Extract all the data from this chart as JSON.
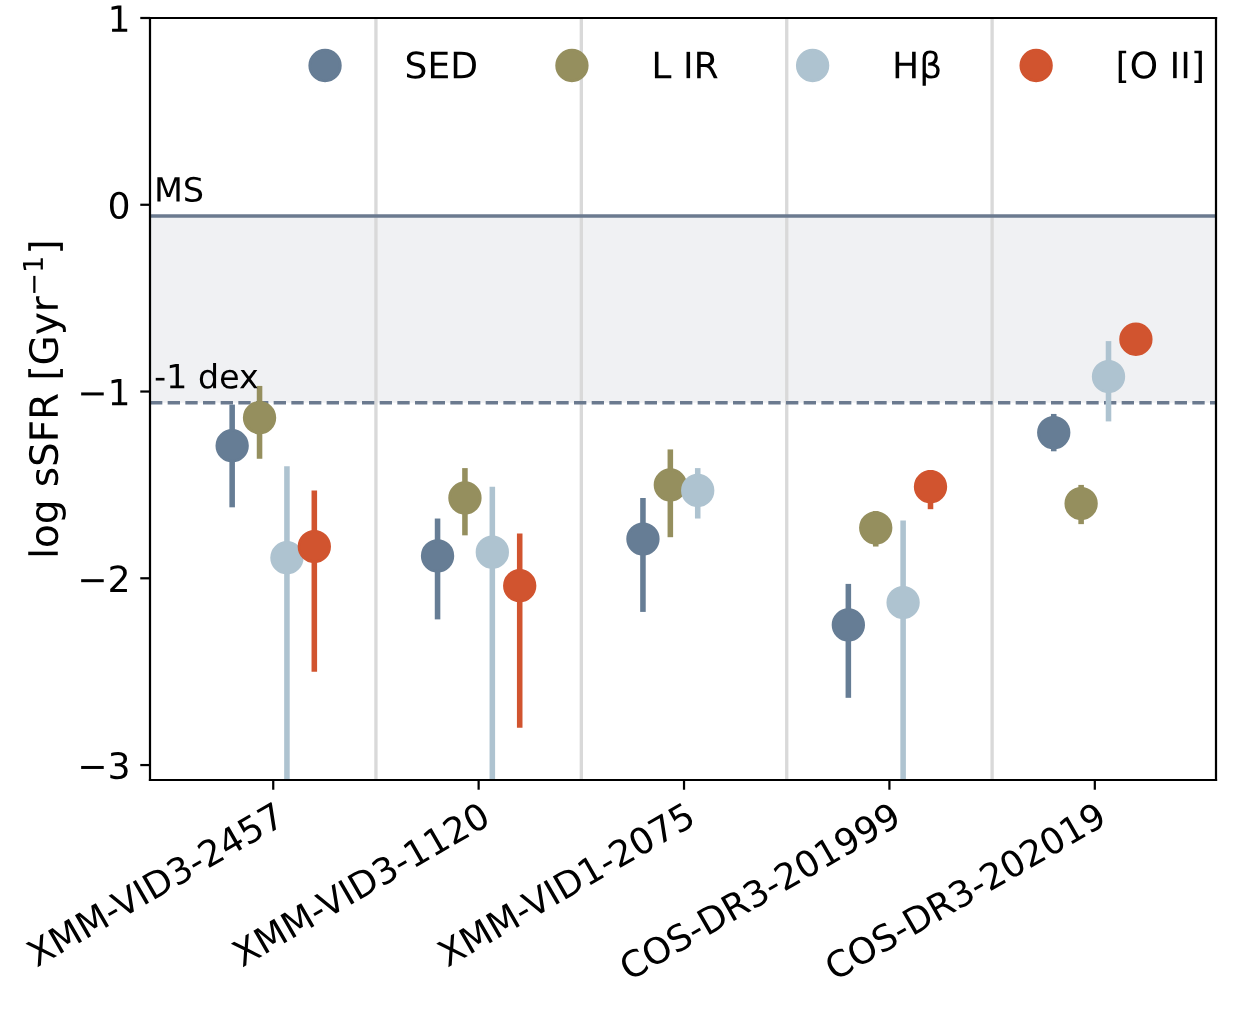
{
  "chart_data": {
    "type": "scatter",
    "ylabel": "log sSFR [Gyr$^{−1}$]",
    "categories": [
      "XMM-VID3-2457",
      "XMM-VID3-1120",
      "XMM-VID1-2075",
      "COS-DR3-201999",
      "COS-DR3-202019"
    ],
    "series": [
      {
        "name": "SED",
        "color": "#667d95",
        "values": [
          -1.29,
          -1.88,
          -1.79,
          -2.25,
          -1.22
        ],
        "errors": [
          [
            -1.62,
            -1.07
          ],
          [
            -2.22,
            -1.68
          ],
          [
            -2.18,
            -1.57
          ],
          [
            -2.64,
            -2.03
          ],
          [
            -1.32,
            -1.12
          ]
        ]
      },
      {
        "name": "L IR",
        "color": "#958f5e",
        "values": [
          -1.14,
          -1.57,
          -1.5,
          -1.73,
          -1.6
        ],
        "errors": [
          [
            -1.36,
            -0.97
          ],
          [
            -1.77,
            -1.41
          ],
          [
            -1.78,
            -1.31
          ],
          [
            -1.83,
            -1.64
          ],
          [
            -1.71,
            -1.5
          ]
        ]
      },
      {
        "name": "Hβ",
        "color": "#aec3d0",
        "values": [
          -1.89,
          -1.86,
          -1.53,
          -2.13,
          -0.92
        ],
        "errors": [
          [
            -3.08,
            -1.4
          ],
          [
            -3.08,
            -1.51
          ],
          [
            -1.68,
            -1.41
          ],
          [
            -3.08,
            -1.69
          ],
          [
            -1.16,
            -0.73
          ]
        ]
      },
      {
        "name": "[O II]",
        "color": "#d1542f",
        "values": [
          -1.83,
          -2.04,
          null,
          -1.51,
          -0.72
        ],
        "errors": [
          [
            -2.5,
            -1.53
          ],
          [
            -2.8,
            -1.76
          ],
          null,
          [
            -1.63,
            -1.42
          ],
          null
        ]
      }
    ],
    "ylim": [
      -3.08,
      1
    ],
    "yticks": [
      {
        "value": -3,
        "label": "−3"
      },
      {
        "value": -2,
        "label": "−2"
      },
      {
        "value": -1,
        "label": "−1"
      },
      0,
      1
    ],
    "ref_lines": [
      {
        "axis": "y",
        "value": -0.06,
        "label": "MS",
        "color": "#6b7a8f",
        "line_style": "solid"
      },
      {
        "axis": "y",
        "value": -1.06,
        "label": "-1 dex",
        "color": "#6b7a8f",
        "line_style": "dashed"
      }
    ],
    "bands": [
      {
        "axis": "y",
        "from": -1.06,
        "to": -0.06,
        "color": "#f0f1f3"
      }
    ],
    "grid": "x",
    "legend": "top",
    "marker": "circle"
  }
}
